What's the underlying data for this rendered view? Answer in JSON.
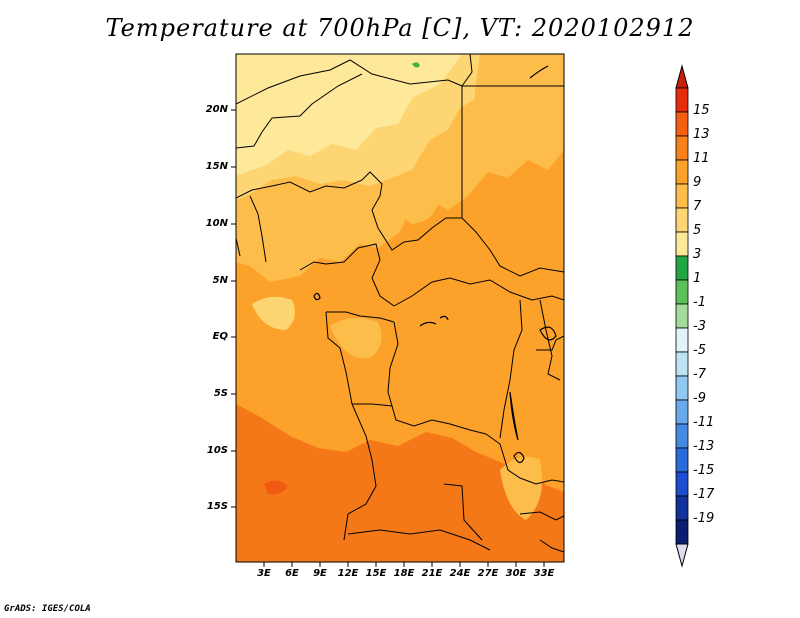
{
  "title": "Temperature at 700hPa [C], VT: 2020102912",
  "credit": "GrADS: IGES/COLA",
  "map": {
    "projection": "latlon",
    "lon_range": [
      0,
      35
    ],
    "lat_range": [
      -20,
      25
    ],
    "lat_ticks": [
      "20N",
      "15N",
      "10N",
      "5N",
      "EQ",
      "5S",
      "10S",
      "15S"
    ],
    "lon_ticks": [
      "3E",
      "6E",
      "9E",
      "12E",
      "15E",
      "18E",
      "21E",
      "24E",
      "27E",
      "30E",
      "33E"
    ],
    "field_colors": {
      "north_pale": "#fee99a",
      "yellow": "#fdd572",
      "light_orange": "#fdbd4b",
      "orange": "#fca129",
      "dark_orange": "#f47818",
      "green_spot": "#3fb144"
    }
  },
  "colorbar": {
    "labels": [
      "15",
      "13",
      "11",
      "9",
      "7",
      "5",
      "3",
      "1",
      "-1",
      "-3",
      "-5",
      "-7",
      "-9",
      "-11",
      "-13",
      "-15",
      "-17",
      "-19"
    ],
    "colors": [
      "#e52c0b",
      "#f45f10",
      "#f88219",
      "#fca129",
      "#fdbd4b",
      "#fdd572",
      "#fee99a",
      "#23a445",
      "#5cc15a",
      "#a2db9b",
      "#e1f3f8",
      "#bde3f5",
      "#91c8f0",
      "#6aaaea",
      "#4589e2",
      "#2a6ad9",
      "#1d4ecf",
      "#12329a",
      "#0a1d70"
    ],
    "top_cap_color": "#c8200b",
    "bottom_cap_color": "#dfdcf0"
  }
}
